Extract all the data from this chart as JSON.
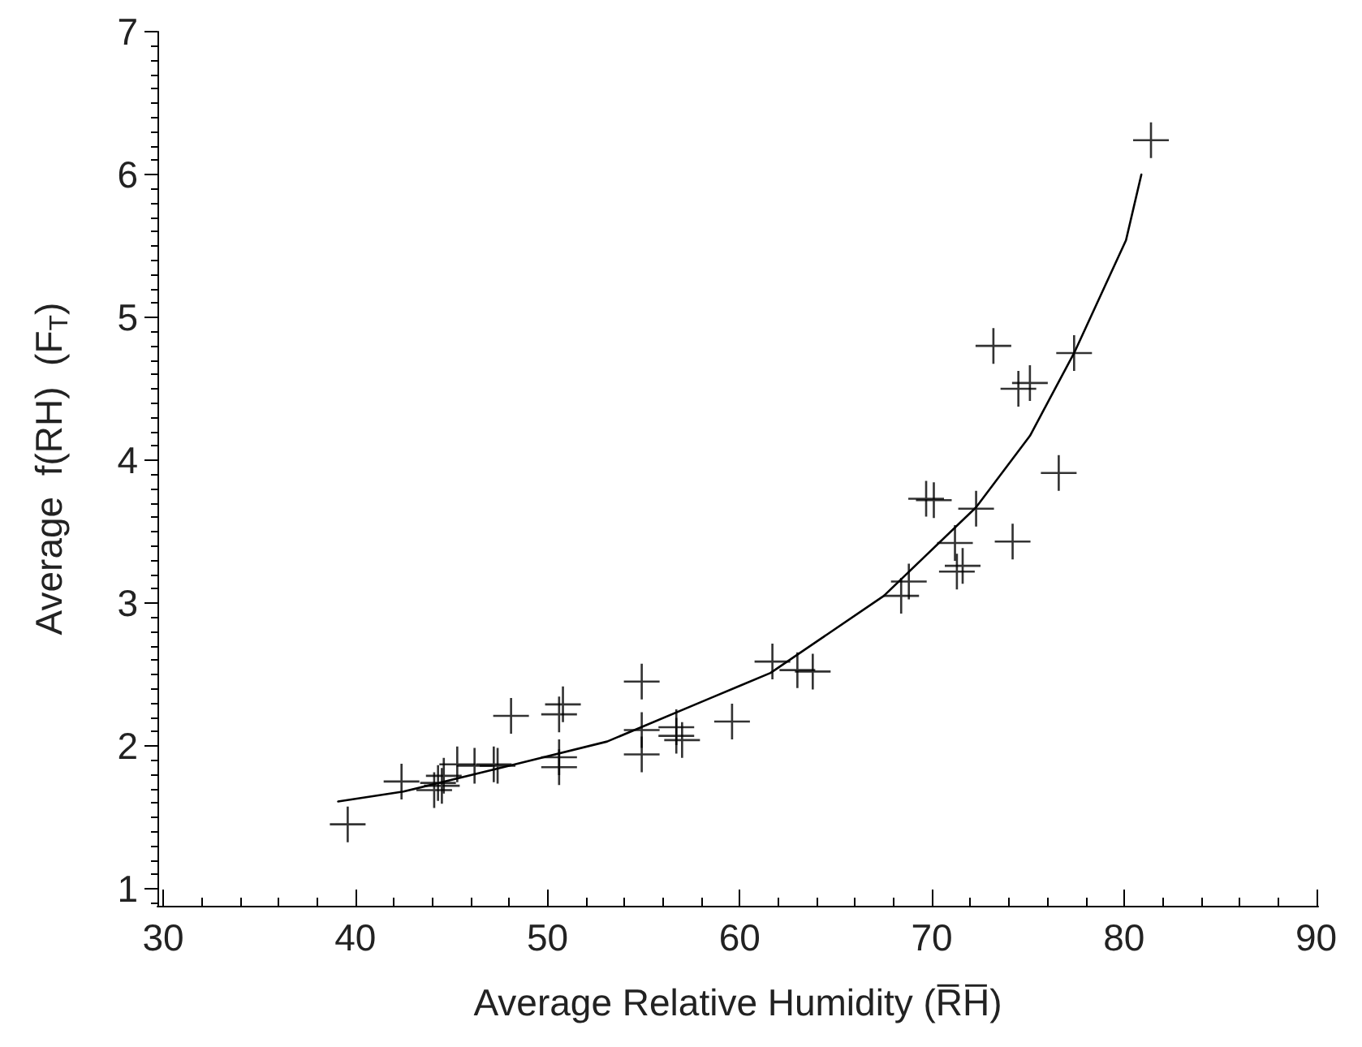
{
  "chart_data": {
    "type": "scatter",
    "xlabel": "Average Relative Humidity (R̅H̅)",
    "ylabel": "Average  f(RH)  (F$_{T}$)",
    "xlim": [
      29.7,
      90.1
    ],
    "xticks": [
      30,
      40,
      50,
      60,
      70,
      80,
      90
    ],
    "ylim": [
      0.88,
      7
    ],
    "yticks": [
      1,
      2,
      3,
      4,
      5,
      6,
      7
    ],
    "grid": false,
    "series": [
      {
        "marker": "cross",
        "color": "#000000",
        "x": [
          39.6,
          42.4,
          44.1,
          44.3,
          44.6,
          44.5,
          45.3,
          46.2,
          47.2,
          47.4,
          48.1,
          50.6,
          50.8,
          50.6,
          50.6,
          54.9,
          54.9,
          54.9,
          56.7,
          56.7,
          57.0,
          59.6,
          61.7,
          63.0,
          63.8,
          68.4,
          68.8,
          71.2,
          71.3,
          71.6,
          69.7,
          70.1,
          72.3,
          74.2,
          73.2,
          74.5,
          75.1,
          76.6,
          77.4,
          81.4
        ],
        "values": [
          1.45,
          1.75,
          1.69,
          1.74,
          1.79,
          1.72,
          1.87,
          1.86,
          1.87,
          1.86,
          2.21,
          2.22,
          2.29,
          1.92,
          1.85,
          2.45,
          2.11,
          1.94,
          2.13,
          2.07,
          2.04,
          2.17,
          2.59,
          2.53,
          2.52,
          3.05,
          3.15,
          3.42,
          3.22,
          3.26,
          3.73,
          3.72,
          3.66,
          3.43,
          4.8,
          4.5,
          4.54,
          3.91,
          4.75,
          6.24
        ]
      },
      {
        "type": "line",
        "marker": "none",
        "line_style": "solid",
        "color": "#000000",
        "x": [
          39.1,
          42.5,
          48.3,
          53.1,
          58.4,
          60.0,
          61.6,
          67.5,
          72.3,
          75.1,
          77.4,
          80.1,
          80.9
        ],
        "values": [
          1.61,
          1.68,
          1.87,
          2.03,
          2.33,
          2.42,
          2.51,
          3.05,
          3.67,
          4.17,
          4.75,
          5.54,
          6.0
        ]
      }
    ]
  }
}
